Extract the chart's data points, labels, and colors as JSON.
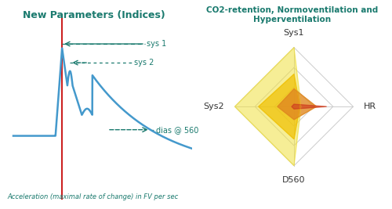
{
  "left_title": "New Parameters (Indices)",
  "left_subtitle": "Acceleration (maximal rate of change) in FV per sec",
  "right_title": "CO2-retention, Normoventilation and\nHyperventilation",
  "title_color": "#1a7a6e",
  "radar_gridcolor": "#cccccc",
  "series": [
    {
      "values": [
        1.0,
        0.12,
        1.0,
        1.0
      ],
      "color": "#f0e040",
      "alpha": 0.55
    },
    {
      "values": [
        0.55,
        0.1,
        0.55,
        0.6
      ],
      "color": "#f0c000",
      "alpha": 0.7
    },
    {
      "values": [
        0.3,
        0.38,
        0.22,
        0.28
      ],
      "color": "#e08820",
      "alpha": 0.8
    },
    {
      "values": [
        0.04,
        0.55,
        0.04,
        0.04
      ],
      "color": "#d04020",
      "alpha": 0.65
    }
  ],
  "waveform_color": "#4499cc",
  "redline_color": "#cc2222",
  "arrow_color": "#1a7a6e",
  "label_color": "#1a7a6e",
  "bg_color": "#ffffff",
  "annotation_fontsize": 7,
  "title_fontsize": 9,
  "subtitle_fontsize": 6
}
